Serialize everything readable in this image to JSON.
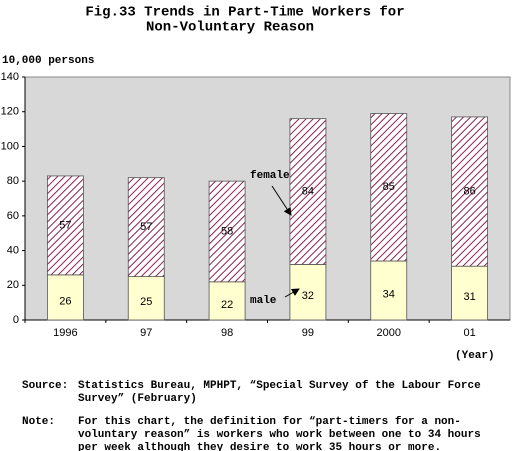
{
  "chart_data": {
    "type": "stacked_bar",
    "title": [
      "Fig.33 Trends in Part-Time Workers for",
      "Non-Voluntary Reason"
    ],
    "y_label": "10,000 persons",
    "x_label": "(Year)",
    "categories": [
      "1996",
      "97",
      "98",
      "99",
      "2000",
      "01"
    ],
    "series": [
      {
        "name": "male",
        "color": "#ffffd0",
        "values": [
          26,
          25,
          22,
          32,
          34,
          31
        ]
      },
      {
        "name": "female",
        "color": "#8b2252",
        "hatch": true,
        "values": [
          57,
          57,
          58,
          84,
          85,
          86
        ]
      }
    ],
    "ylim": [
      0,
      140
    ],
    "yticks": [
      0,
      20,
      40,
      60,
      80,
      100,
      120,
      140
    ],
    "grid": false,
    "source": {
      "label": "Source:",
      "lines": [
        "Statistics Bureau, MPHPT, “Special Survey of the Labour Force",
        "Survey” (February)"
      ]
    },
    "note": {
      "label": "Note:",
      "lines": [
        "For this chart, the definition for  “part-timers for a non-",
        "voluntary reason”  is workers who work between one to 34 hours",
        "per week although they desire to work 35 hours or more."
      ]
    }
  }
}
